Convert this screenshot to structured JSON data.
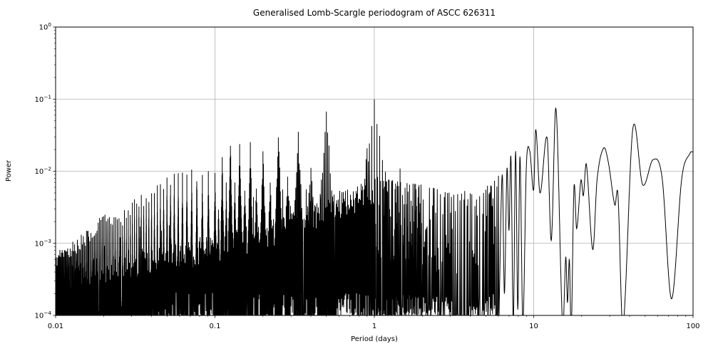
{
  "figure": {
    "background": "#ffffff"
  },
  "chart_data": {
    "type": "line",
    "title": "Generalised Lomb-Scargle periodogram of ASCC 626311",
    "xlabel": "Period (days)",
    "ylabel": "Power",
    "xscale": "log",
    "yscale": "log",
    "xlim": [
      0.01,
      100
    ],
    "ylim": [
      0.0001,
      1
    ],
    "grid": true,
    "legend": "none",
    "line_color": "#000000",
    "grid_color": "#b0b0b0",
    "spine_color": "#000000",
    "x_ticks": [
      0.01,
      0.1,
      1,
      10,
      100
    ],
    "x_tick_labels": [
      "0.01",
      "0.1",
      "1",
      "10",
      "100"
    ],
    "y_tick_exponents": [
      0,
      -1,
      -2,
      -3,
      -4
    ],
    "major_peaks": [
      {
        "period": 0.25,
        "power": 0.028
      },
      {
        "period": 0.333,
        "power": 0.028
      },
      {
        "period": 0.5,
        "power": 0.055
      },
      {
        "period": 1.0,
        "power": 0.084
      },
      {
        "period": 7.7,
        "power": 0.019
      },
      {
        "period": 9.45,
        "power": 0.019
      },
      {
        "period": 10.3,
        "power": 0.038
      },
      {
        "period": 12.15,
        "power": 0.029
      },
      {
        "period": 13.8,
        "power": 0.074
      },
      {
        "period": 21.4,
        "power": 0.0125
      },
      {
        "period": 27.5,
        "power": 0.021
      },
      {
        "period": 41.9,
        "power": 0.039
      },
      {
        "period": 56.2,
        "power": 0.0145
      },
      {
        "period": 96.0,
        "power": 0.018
      }
    ],
    "alias_spike_heights": [
      [
        1,
        0.084
      ],
      [
        2,
        0.055
      ],
      [
        3,
        0.028
      ],
      [
        4,
        0.028
      ],
      [
        5,
        0.018
      ],
      [
        6,
        0.02
      ],
      [
        7,
        0.023
      ],
      [
        8,
        0.024
      ],
      [
        9,
        0.0145
      ],
      [
        10,
        0.0088
      ],
      [
        12,
        0.0085
      ],
      [
        14,
        0.009
      ],
      [
        16,
        0.0075
      ],
      [
        18,
        0.008
      ],
      [
        20,
        0.007
      ],
      [
        24,
        0.005
      ],
      [
        28,
        0.004
      ],
      [
        32,
        0.0035
      ],
      [
        40,
        0.002
      ],
      [
        50,
        0.002
      ],
      [
        60,
        0.0013
      ],
      [
        75,
        0.0009
      ],
      [
        100,
        0.0006
      ]
    ],
    "sidelobe_spacing_cpd": 0.037,
    "sidelobe_profile": [
      1,
      0.55,
      0.34,
      0.2,
      0.12,
      0.08,
      0.05,
      0.04
    ],
    "half_integer_factor": 0.32,
    "noise_envelope": [
      [
        0.01,
        0.00033
      ],
      [
        0.02,
        0.00045
      ],
      [
        0.04,
        0.0006
      ],
      [
        0.07,
        0.00075
      ],
      [
        0.1,
        0.0009
      ],
      [
        0.2,
        0.0013
      ],
      [
        0.3,
        0.0018
      ],
      [
        0.5,
        0.003
      ],
      [
        0.7,
        0.004
      ],
      [
        1.0,
        0.0055
      ],
      [
        1.3,
        0.004
      ],
      [
        2,
        0.0028
      ],
      [
        3,
        0.0022
      ],
      [
        4,
        0.0028
      ],
      [
        5,
        0.0035
      ],
      [
        6,
        0.0045
      ]
    ],
    "region_b_spike_envelope": [
      [
        1,
        0.0085
      ],
      [
        1.5,
        0.007
      ],
      [
        2,
        0.0065
      ],
      [
        3,
        0.005
      ],
      [
        4,
        0.0055
      ],
      [
        5,
        0.0065
      ],
      [
        6,
        0.009
      ]
    ],
    "smooth_curve": [
      [
        6.05,
        8e-05
      ],
      [
        6.35,
        0.009
      ],
      [
        6.55,
        0.0002
      ],
      [
        6.8,
        0.011
      ],
      [
        7.0,
        0.0015
      ],
      [
        7.2,
        0.0157
      ],
      [
        7.45,
        8e-05
      ],
      [
        7.7,
        0.019
      ],
      [
        7.95,
        0.00012
      ],
      [
        8.2,
        0.016
      ],
      [
        8.55,
        8e-05
      ],
      [
        9.0,
        0.012
      ],
      [
        9.45,
        0.019
      ],
      [
        10.0,
        0.0055
      ],
      [
        10.3,
        0.038
      ],
      [
        10.95,
        0.005
      ],
      [
        12.15,
        0.029
      ],
      [
        12.9,
        0.0011
      ],
      [
        13.8,
        0.074
      ],
      [
        15.2,
        7e-05
      ],
      [
        15.9,
        0.00065
      ],
      [
        16.3,
        0.00015
      ],
      [
        16.75,
        0.0006
      ],
      [
        17.2,
        6e-05
      ],
      [
        17.9,
        0.006
      ],
      [
        18.6,
        0.0016
      ],
      [
        19.8,
        0.0075
      ],
      [
        20.5,
        0.0046
      ],
      [
        21.4,
        0.0125
      ],
      [
        23.5,
        0.00082
      ],
      [
        25.0,
        0.0077
      ],
      [
        27.5,
        0.021
      ],
      [
        29.5,
        0.0128
      ],
      [
        32.3,
        0.0034
      ],
      [
        33.8,
        0.0047
      ],
      [
        36.3,
        7e-05
      ],
      [
        41.9,
        0.039
      ],
      [
        48.3,
        0.0065
      ],
      [
        56.2,
        0.0145
      ],
      [
        64.0,
        0.008
      ],
      [
        73.3,
        0.00017
      ],
      [
        85.0,
        0.008
      ],
      [
        96.0,
        0.018
      ],
      [
        100.0,
        0.0185
      ]
    ],
    "noise_seed": 13
  }
}
